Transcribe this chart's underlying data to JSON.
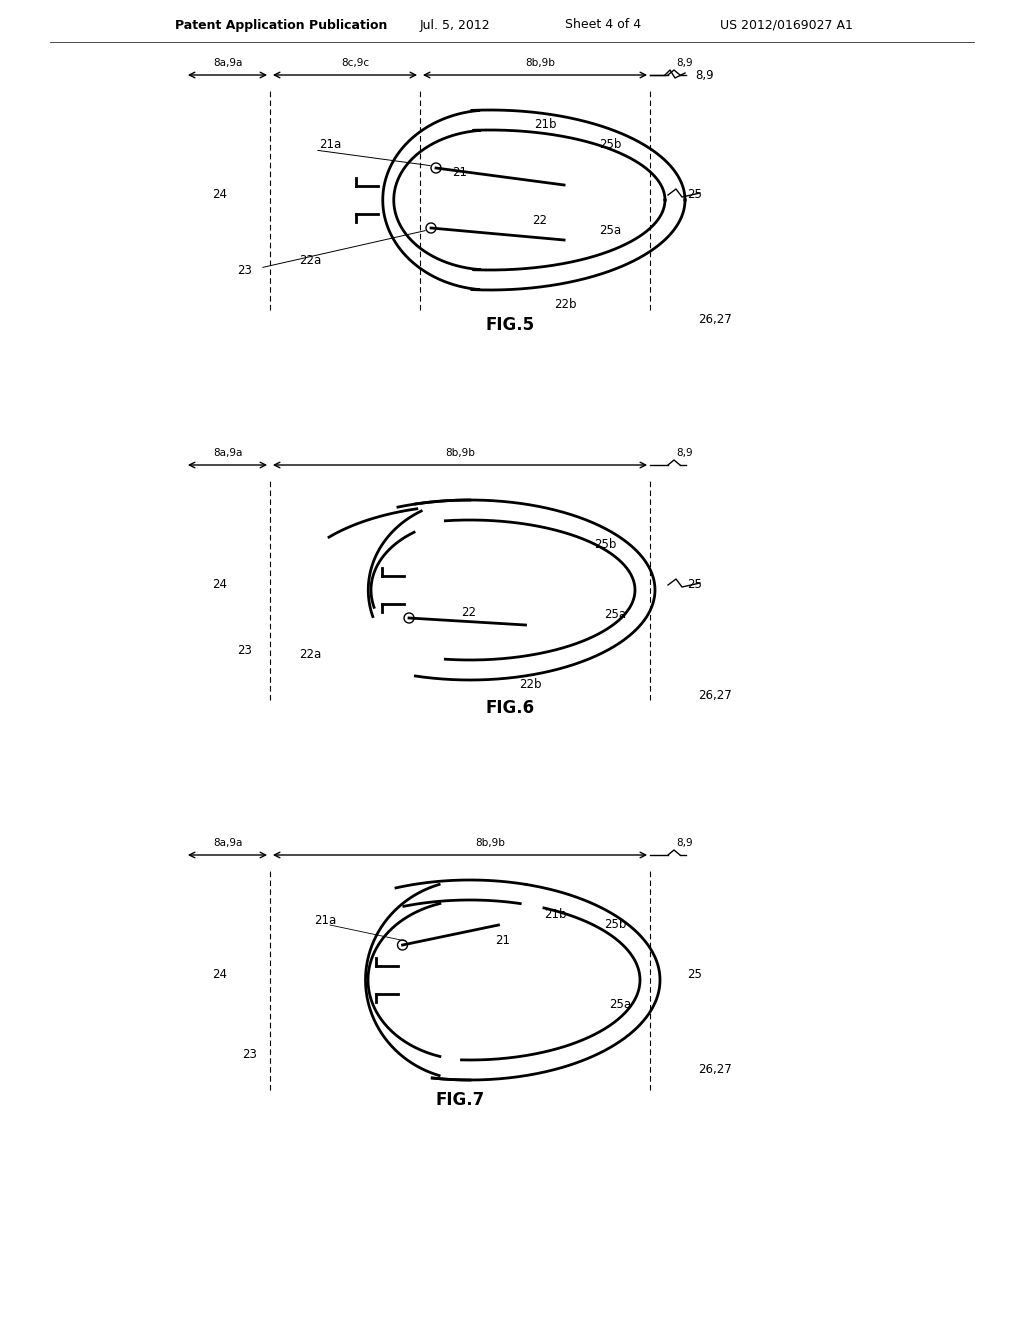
{
  "bg_color": "#ffffff",
  "line_color": "#000000",
  "header_text": "Patent Application Publication",
  "header_date": "Jul. 5, 2012",
  "header_sheet": "Sheet 4 of 4",
  "header_patent": "US 2012/0169027 A1",
  "fig5_label": "FIG.5",
  "fig6_label": "FIG.6",
  "fig7_label": "FIG.7",
  "font_size_header": 9,
  "font_size_label": 11,
  "font_size_ref": 8.5
}
